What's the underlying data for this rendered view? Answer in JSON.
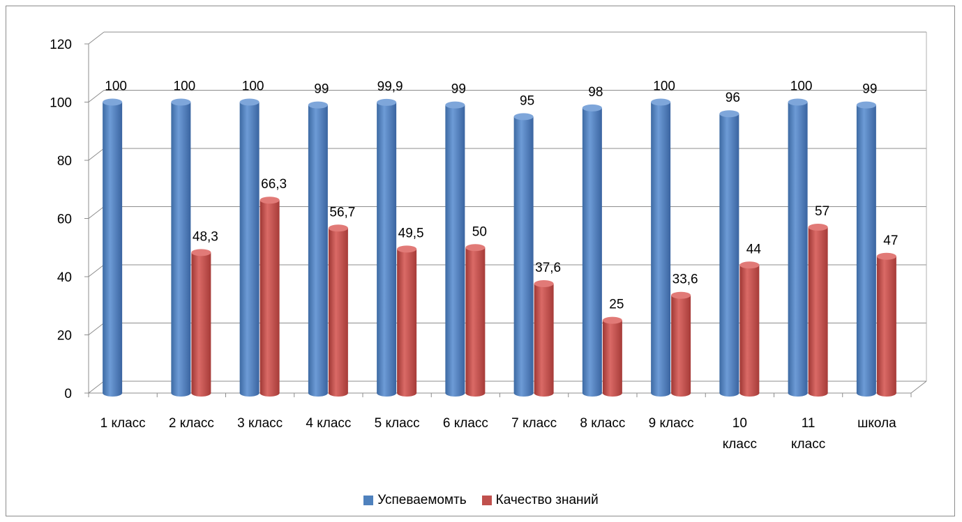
{
  "chart_data": {
    "type": "bar",
    "title": "",
    "xlabel": "",
    "ylabel": "",
    "ylim": [
      0,
      120
    ],
    "yticks": [
      0,
      20,
      40,
      60,
      80,
      100,
      120
    ],
    "grid": true,
    "legend_position": "bottom",
    "categories": [
      [
        "1 класс"
      ],
      [
        "2 класс"
      ],
      [
        "3 класс"
      ],
      [
        "4 класс"
      ],
      [
        "5 класс"
      ],
      [
        "6 класс"
      ],
      [
        "7 класс"
      ],
      [
        "8 класс"
      ],
      [
        "9 класс"
      ],
      [
        "10",
        "класс"
      ],
      [
        "11",
        "класс"
      ],
      [
        "школа"
      ]
    ],
    "series": [
      {
        "name": "Успеваемомть",
        "color": "#4F81BD",
        "values": [
          100,
          100,
          100,
          99,
          99.9,
          99,
          95,
          98,
          100,
          96,
          100,
          99
        ],
        "labels": [
          "100",
          "100",
          "100",
          "99",
          "99,9",
          "99",
          "95",
          "98",
          "100",
          "96",
          "100",
          "99"
        ]
      },
      {
        "name": "Качество знаний",
        "color": "#C0504D",
        "values": [
          0,
          48.3,
          66.3,
          56.7,
          49.5,
          50,
          37.6,
          25,
          33.6,
          44,
          57,
          47
        ],
        "labels": [
          "",
          "48,3",
          "66,3",
          "56,7",
          "49,5",
          "50",
          "37,6",
          "25",
          "33,6",
          "44",
          "57",
          "47"
        ]
      }
    ]
  }
}
